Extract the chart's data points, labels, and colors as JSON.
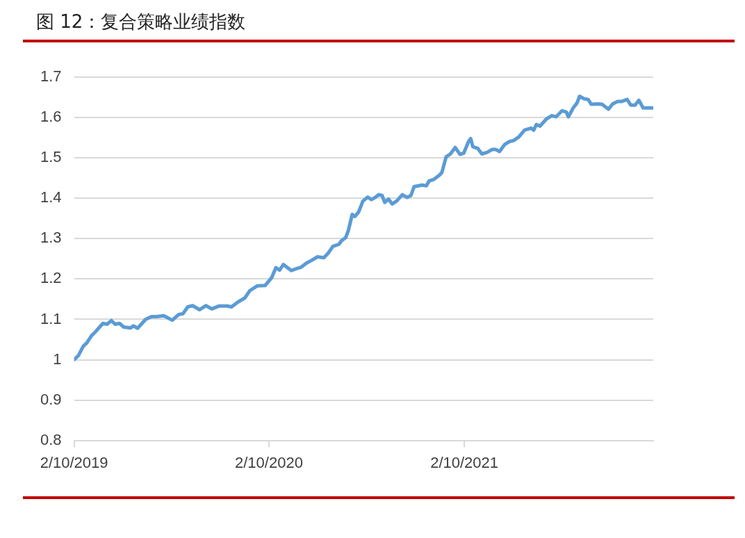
{
  "chart_data": {
    "type": "line",
    "title": "图 12：复合策略业绩指数",
    "x": [
      "2019-02-10",
      "2019-02-18",
      "2019-02-27",
      "2019-03-06",
      "2019-03-15",
      "2019-03-24",
      "2019-04-05",
      "2019-04-13",
      "2019-04-21",
      "2019-04-28",
      "2019-05-06",
      "2019-05-14",
      "2019-05-27",
      "2019-06-01",
      "2019-06-09",
      "2019-06-24",
      "2019-07-05",
      "2019-07-15",
      "2019-07-28",
      "2019-08-13",
      "2019-08-25",
      "2019-09-02",
      "2019-09-11",
      "2019-09-20",
      "2019-10-03",
      "2019-10-15",
      "2019-10-26",
      "2019-11-08",
      "2019-11-24",
      "2019-12-02",
      "2019-12-14",
      "2019-12-27",
      "2020-01-05",
      "2020-01-19",
      "2020-02-03",
      "2020-02-15",
      "2020-02-23",
      "2020-03-01",
      "2020-03-08",
      "2020-03-23",
      "2020-04-02",
      "2020-04-10",
      "2020-04-21",
      "2020-05-01",
      "2020-05-11",
      "2020-05-23",
      "2020-05-31",
      "2020-06-09",
      "2020-06-20",
      "2020-06-25",
      "2020-07-03",
      "2020-07-08",
      "2020-07-15",
      "2020-07-20",
      "2020-07-27",
      "2020-08-04",
      "2020-08-13",
      "2020-08-20",
      "2020-08-28",
      "2020-09-03",
      "2020-09-09",
      "2020-09-14",
      "2020-09-21",
      "2020-09-28",
      "2020-10-06",
      "2020-10-17",
      "2020-10-26",
      "2020-11-02",
      "2020-11-08",
      "2020-11-23",
      "2020-12-01",
      "2020-12-06",
      "2020-12-15",
      "2020-12-25",
      "2020-12-30",
      "2021-01-07",
      "2021-01-15",
      "2021-01-24",
      "2021-02-02",
      "2021-02-09",
      "2021-02-18",
      "2021-02-22",
      "2021-02-26",
      "2021-03-07",
      "2021-03-15",
      "2021-03-25",
      "2021-04-03",
      "2021-04-10",
      "2021-04-17",
      "2021-04-27",
      "2021-05-06",
      "2021-05-13",
      "2021-05-23",
      "2021-06-03",
      "2021-06-15",
      "2021-06-20",
      "2021-06-25",
      "2021-07-02",
      "2021-07-14",
      "2021-07-24",
      "2021-08-01",
      "2021-08-12",
      "2021-08-20",
      "2021-08-24",
      "2021-09-02",
      "2021-09-09",
      "2021-09-14",
      "2021-09-22",
      "2021-09-30",
      "2021-10-06",
      "2021-10-18",
      "2021-10-26",
      "2021-11-07",
      "2021-11-15",
      "2021-11-24",
      "2021-12-01",
      "2021-12-12",
      "2021-12-19",
      "2021-12-27",
      "2022-01-03",
      "2022-01-11",
      "2022-01-23",
      "2022-01-30"
    ],
    "series": [
      {
        "color": "#5b9bd5",
        "values": [
          1.0,
          1.01,
          1.033,
          1.042,
          1.06,
          1.072,
          1.09,
          1.088,
          1.097,
          1.088,
          1.09,
          1.081,
          1.079,
          1.084,
          1.078,
          1.1,
          1.107,
          1.107,
          1.109,
          1.098,
          1.112,
          1.114,
          1.131,
          1.134,
          1.124,
          1.134,
          1.126,
          1.133,
          1.133,
          1.131,
          1.143,
          1.153,
          1.171,
          1.183,
          1.184,
          1.203,
          1.228,
          1.222,
          1.236,
          1.221,
          1.226,
          1.229,
          1.24,
          1.247,
          1.255,
          1.253,
          1.264,
          1.281,
          1.286,
          1.295,
          1.303,
          1.321,
          1.36,
          1.355,
          1.366,
          1.393,
          1.403,
          1.397,
          1.403,
          1.409,
          1.407,
          1.39,
          1.398,
          1.386,
          1.393,
          1.409,
          1.402,
          1.407,
          1.429,
          1.433,
          1.431,
          1.443,
          1.447,
          1.457,
          1.464,
          1.503,
          1.51,
          1.526,
          1.509,
          1.512,
          1.541,
          1.548,
          1.528,
          1.524,
          1.51,
          1.514,
          1.521,
          1.521,
          1.516,
          1.534,
          1.541,
          1.543,
          1.552,
          1.569,
          1.574,
          1.569,
          1.583,
          1.579,
          1.597,
          1.605,
          1.602,
          1.617,
          1.614,
          1.602,
          1.624,
          1.636,
          1.653,
          1.647,
          1.645,
          1.633,
          1.634,
          1.633,
          1.621,
          1.634,
          1.64,
          1.64,
          1.645,
          1.631,
          1.631,
          1.643,
          1.624,
          1.624,
          1.624
        ]
      }
    ],
    "xlim": [
      "2019-02-10",
      "2022-01-30"
    ],
    "xticks": [
      {
        "value": "2019-02-10",
        "label": "2/10/2019"
      },
      {
        "value": "2020-02-10",
        "label": "2/10/2020"
      },
      {
        "value": "2021-02-10",
        "label": "2/10/2021"
      }
    ],
    "ylim": [
      0.8,
      1.7
    ],
    "yticks": [
      0.8,
      0.9,
      1,
      1.1,
      1.2,
      1.3,
      1.4,
      1.5,
      1.6,
      1.7
    ],
    "grid": "y",
    "legend": false,
    "marker": "none",
    "line_style": "solid"
  }
}
